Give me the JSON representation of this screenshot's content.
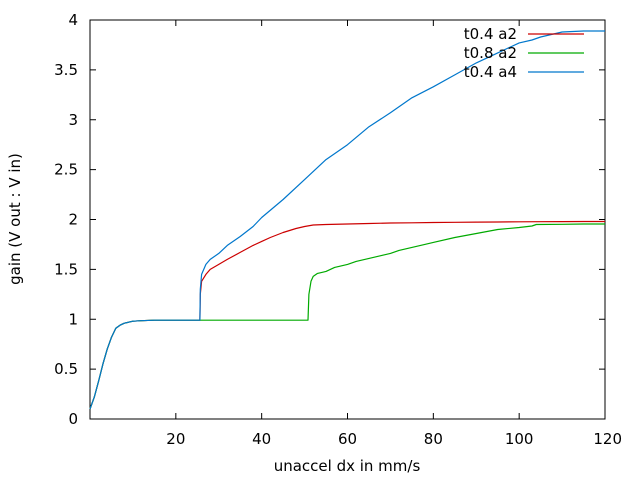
{
  "chart_data": {
    "type": "line",
    "title": "",
    "xlabel": "unaccel dx in mm/s",
    "ylabel": "gain (V out : V in)",
    "xlim": [
      0,
      120
    ],
    "ylim": [
      0,
      4
    ],
    "xticks": [
      20,
      40,
      60,
      80,
      100,
      120
    ],
    "yticks": [
      0,
      0.5,
      1,
      1.5,
      2,
      2.5,
      3,
      3.5,
      4
    ],
    "grid": false,
    "legend_position": "top-right",
    "series": [
      {
        "name": "t0.4 a2",
        "color": "#cc0000",
        "x": [
          0,
          1,
          2,
          3,
          4,
          5,
          6,
          7,
          8,
          9,
          10,
          12,
          15,
          20,
          25.6,
          25.7,
          26,
          27,
          28,
          30,
          32,
          35,
          38,
          40,
          42,
          45,
          48,
          50,
          52,
          55,
          60,
          65,
          70,
          75,
          80,
          85,
          90,
          95,
          100,
          105,
          110,
          115,
          120
        ],
        "y": [
          0.1,
          0.22,
          0.38,
          0.55,
          0.7,
          0.82,
          0.91,
          0.94,
          0.96,
          0.97,
          0.98,
          0.985,
          0.99,
          0.99,
          0.99,
          1.25,
          1.38,
          1.45,
          1.5,
          1.55,
          1.6,
          1.67,
          1.74,
          1.78,
          1.82,
          1.87,
          1.91,
          1.93,
          1.945,
          1.95,
          1.955,
          1.96,
          1.965,
          1.967,
          1.97,
          1.972,
          1.974,
          1.975,
          1.977,
          1.978,
          1.979,
          1.98,
          1.98
        ]
      },
      {
        "name": "t0.8 a2",
        "color": "#00aa00",
        "x": [
          0,
          1,
          2,
          3,
          4,
          5,
          6,
          7,
          8,
          9,
          10,
          12,
          15,
          20,
          25,
          30,
          35,
          40,
          45,
          50.8,
          51,
          51.5,
          52,
          53,
          54,
          55,
          56,
          57,
          58,
          60,
          62,
          65,
          68,
          70,
          72,
          75,
          78,
          80,
          85,
          90,
          95,
          100,
          103,
          104,
          110,
          115,
          120
        ],
        "y": [
          0.1,
          0.22,
          0.38,
          0.55,
          0.7,
          0.82,
          0.91,
          0.94,
          0.96,
          0.97,
          0.98,
          0.985,
          0.99,
          0.99,
          0.99,
          0.99,
          0.99,
          0.99,
          0.99,
          0.99,
          1.25,
          1.38,
          1.43,
          1.46,
          1.47,
          1.48,
          1.5,
          1.52,
          1.53,
          1.55,
          1.58,
          1.61,
          1.64,
          1.66,
          1.69,
          1.72,
          1.75,
          1.77,
          1.82,
          1.86,
          1.9,
          1.92,
          1.935,
          1.95,
          1.952,
          1.955,
          1.955
        ]
      },
      {
        "name": "t0.4 a4",
        "color": "#0077cc",
        "x": [
          0,
          1,
          2,
          3,
          4,
          5,
          6,
          7,
          8,
          9,
          10,
          12,
          15,
          20,
          25.6,
          25.7,
          26,
          27,
          28,
          30,
          32,
          35,
          38,
          40,
          45,
          50,
          55,
          60,
          65,
          70,
          75,
          80,
          85,
          90,
          95,
          100,
          103,
          105,
          108,
          110,
          115,
          120
        ],
        "y": [
          0.1,
          0.22,
          0.38,
          0.55,
          0.7,
          0.82,
          0.91,
          0.94,
          0.96,
          0.97,
          0.98,
          0.985,
          0.99,
          0.99,
          0.99,
          1.3,
          1.45,
          1.55,
          1.6,
          1.66,
          1.74,
          1.83,
          1.93,
          2.02,
          2.2,
          2.4,
          2.6,
          2.75,
          2.93,
          3.07,
          3.22,
          3.33,
          3.45,
          3.57,
          3.67,
          3.77,
          3.8,
          3.83,
          3.86,
          3.88,
          3.89,
          3.89
        ]
      }
    ]
  }
}
